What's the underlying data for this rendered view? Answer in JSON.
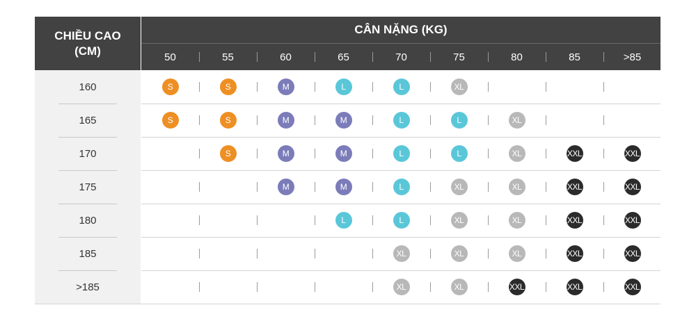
{
  "header": {
    "height_label_line1": "CHIỀU CAO",
    "height_label_line2": "(CM)",
    "weight_label": "CÂN NẶNG (KG)"
  },
  "weights": [
    "50",
    "55",
    "60",
    "65",
    "70",
    "75",
    "80",
    "85",
    ">85"
  ],
  "sizes": {
    "S": {
      "label": "S",
      "color": "#ee8f23"
    },
    "M": {
      "label": "M",
      "color": "#7b7cb9"
    },
    "L": {
      "label": "L",
      "color": "#5ac7d9"
    },
    "XL": {
      "label": "XL",
      "color": "#b8b8b8"
    },
    "XXL": {
      "label": "XXL",
      "color": "#2b2b2b"
    }
  },
  "rows": [
    {
      "height": "160",
      "cells": [
        "S",
        "S",
        "M",
        "L",
        "L",
        "XL",
        "",
        "",
        ""
      ]
    },
    {
      "height": "165",
      "cells": [
        "S",
        "S",
        "M",
        "M",
        "L",
        "L",
        "XL",
        "",
        ""
      ]
    },
    {
      "height": "170",
      "cells": [
        "",
        "S",
        "M",
        "M",
        "L",
        "L",
        "XL",
        "XXL",
        "XXL"
      ]
    },
    {
      "height": "175",
      "cells": [
        "",
        "",
        "M",
        "M",
        "L",
        "XL",
        "XL",
        "XXL",
        "XXL"
      ]
    },
    {
      "height": "180",
      "cells": [
        "",
        "",
        "",
        "L",
        "L",
        "XL",
        "XL",
        "XXL",
        "XXL"
      ]
    },
    {
      "height": "185",
      "cells": [
        "",
        "",
        "",
        "",
        "XL",
        "XL",
        "XL",
        "XXL",
        "XXL"
      ]
    },
    {
      "height": ">185",
      "cells": [
        "",
        "",
        "",
        "",
        "XL",
        "XL",
        "XXL",
        "XXL",
        "XXL"
      ]
    }
  ]
}
